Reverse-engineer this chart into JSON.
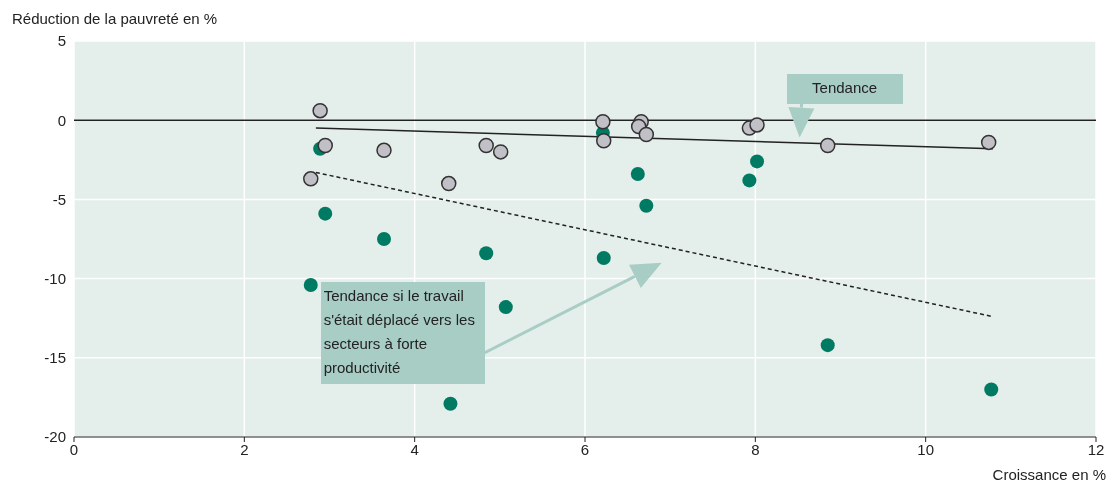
{
  "chart_data": {
    "type": "scatter",
    "ylabel": "Réduction de la pauvreté en %",
    "xlabel": "Croissance en %",
    "xlim": [
      0,
      12
    ],
    "xticks": [
      0,
      2,
      4,
      6,
      8,
      10,
      12
    ],
    "ylim": [
      -20,
      5
    ],
    "yticks": [
      -20,
      -15,
      -10,
      -5,
      0,
      5
    ],
    "grid": true,
    "marker": "circle",
    "ref_lines": [
      {
        "axis": "y",
        "value": 0,
        "color": "#222222"
      }
    ],
    "series": [
      {
        "color": "#007a62",
        "x": [
          2.89,
          2.95,
          3.64,
          2.78,
          4.42,
          4.84,
          5.07,
          6.21,
          6.22,
          6.62,
          6.72,
          7.93,
          8.02,
          8.85,
          10.77
        ],
        "values": [
          -1.8,
          -5.9,
          -7.5,
          -10.4,
          -17.9,
          -8.4,
          -11.8,
          -0.8,
          -8.7,
          -3.4,
          -5.4,
          -3.8,
          -2.6,
          -14.2,
          -17.0
        ]
      },
      {
        "color": "#c0c0c6",
        "x": [
          2.89,
          2.95,
          3.64,
          2.78,
          4.4,
          4.84,
          5.01,
          6.21,
          6.22,
          6.66,
          6.63,
          6.72,
          7.93,
          8.02,
          8.85,
          10.74
        ],
        "values": [
          0.6,
          -1.6,
          -1.9,
          -3.7,
          -4.0,
          -1.6,
          -2.0,
          -0.1,
          -1.3,
          -0.1,
          -0.4,
          -0.9,
          -0.5,
          -0.3,
          -1.6,
          -1.4
        ]
      },
      {
        "type": "line",
        "color": "#222222",
        "line_style": "solid",
        "marker": "none",
        "x": [
          2.84,
          10.79
        ],
        "values": [
          -0.5,
          -1.8
        ]
      },
      {
        "type": "line",
        "color": "#222222",
        "line_style": "dashed",
        "marker": "none",
        "x": [
          2.84,
          10.79
        ],
        "values": [
          -3.3,
          -12.4
        ]
      }
    ],
    "annotations": [
      {
        "text": "Tendance",
        "x": 8.52,
        "y": -1.1
      },
      "Tendance si le travail s'était déplacé vers les secteurs à forte productivité"
    ]
  }
}
